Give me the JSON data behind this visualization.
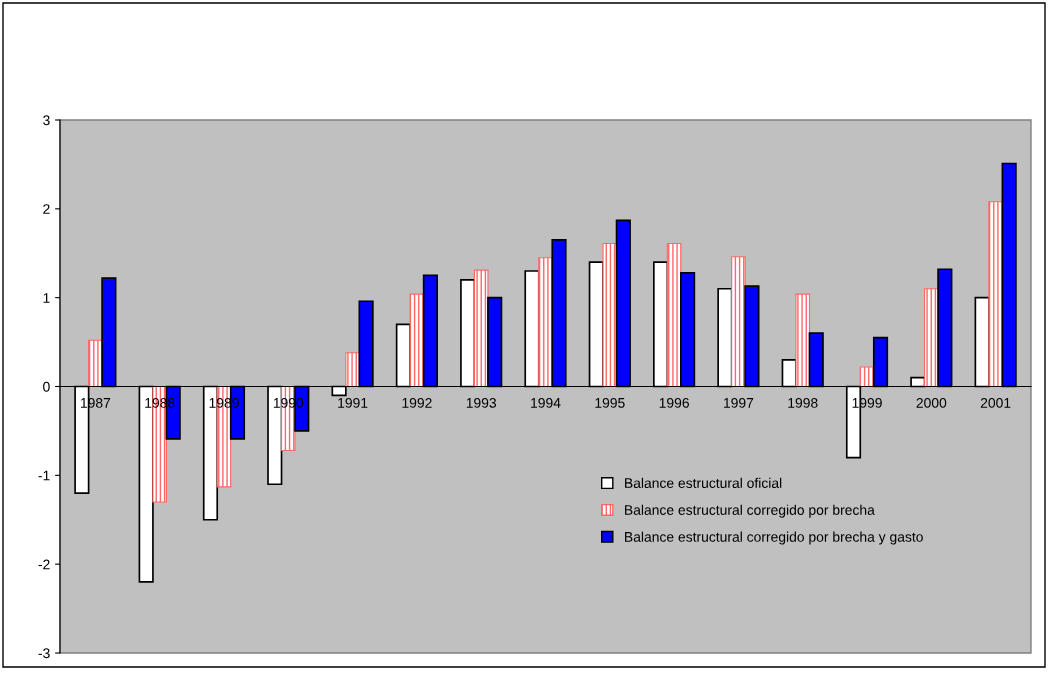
{
  "chart_data": {
    "type": "bar",
    "categories": [
      "1987",
      "1988",
      "1989",
      "1990",
      "1991",
      "1992",
      "1993",
      "1994",
      "1995",
      "1996",
      "1997",
      "1998",
      "1999",
      "2000",
      "2001"
    ],
    "series": [
      {
        "name": "Balance estructural oficial",
        "color": "#ffffff",
        "values": [
          -1.2,
          -2.2,
          -1.5,
          -1.1,
          -0.1,
          0.7,
          1.2,
          1.3,
          1.4,
          1.4,
          1.1,
          0.3,
          -0.8,
          0.1,
          1.0
        ]
      },
      {
        "name": "Balance estructural corregido por brecha",
        "color": "#ff6666",
        "values": [
          0.52,
          -1.3,
          -1.13,
          -0.72,
          0.38,
          1.04,
          1.31,
          1.45,
          1.61,
          1.61,
          1.46,
          1.04,
          0.22,
          1.1,
          2.08
        ]
      },
      {
        "name": "Balance estructural corregido por brecha y gasto",
        "color": "#0000ff",
        "values": [
          1.22,
          -0.59,
          -0.59,
          -0.5,
          0.96,
          1.25,
          1.0,
          1.65,
          1.87,
          1.28,
          1.13,
          0.6,
          0.55,
          1.32,
          2.51
        ]
      }
    ],
    "ylim": [
      -3,
      3
    ],
    "yticks": [
      -3,
      -2,
      -1,
      0,
      1,
      2,
      3
    ],
    "grid": false,
    "legend": "bottom right"
  }
}
